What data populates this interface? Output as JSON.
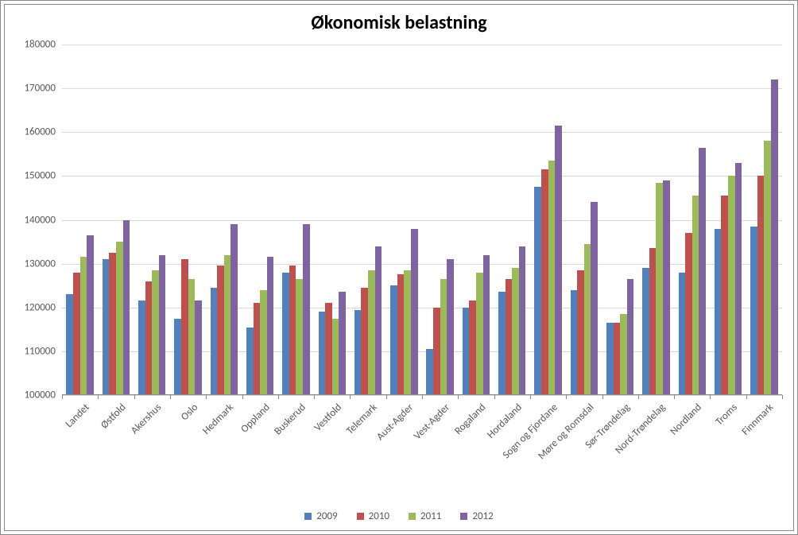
{
  "chart": {
    "type": "bar",
    "title": "Økonomisk belastning",
    "title_fontsize": 24,
    "title_fontweight": "bold",
    "background_color": "#ffffff",
    "border_color": "#888888",
    "grid_color": "#d9d9d9",
    "axis_label_color": "#595959",
    "axis_label_fontsize": 13,
    "tick_mark_color": "#888888",
    "ylim": [
      100000,
      180000
    ],
    "yticks": [
      100000,
      110000,
      120000,
      130000,
      140000,
      150000,
      160000,
      170000,
      180000
    ],
    "categories": [
      "Landet",
      "Østfold",
      "Akershus",
      "Oslo",
      "Hedmark",
      "Oppland",
      "Buskerud",
      "Vestfold",
      "Telemark",
      "Aust-Agder",
      "Vest-Agder",
      "Rogaland",
      "Hordaland",
      "Sogn og Fjordane",
      "Møre og Romsdal",
      "Sør-Trøndelag",
      "Nord-Trøndelag",
      "Nordland",
      "Troms",
      "Finnmark"
    ],
    "series": [
      {
        "name": "2009",
        "color": "#4f81bd",
        "values": [
          123000,
          131000,
          121500,
          117500,
          124500,
          115500,
          128000,
          119000,
          119500,
          125000,
          110500,
          120000,
          123500,
          147500,
          124000,
          116500,
          129000,
          128000,
          138000,
          138500
        ]
      },
      {
        "name": "2010",
        "color": "#c0504d",
        "values": [
          128000,
          132500,
          126000,
          131000,
          129500,
          121000,
          129500,
          121000,
          124500,
          127500,
          120000,
          121500,
          126500,
          151500,
          128500,
          116500,
          133500,
          137000,
          145500,
          150000
        ]
      },
      {
        "name": "2011",
        "color": "#9bbb59",
        "values": [
          131500,
          135000,
          128500,
          126500,
          132000,
          124000,
          126500,
          117500,
          128500,
          128500,
          126500,
          128000,
          129000,
          153500,
          134500,
          118500,
          148500,
          145500,
          150000,
          158000
        ]
      },
      {
        "name": "2012",
        "color": "#8064a2",
        "values": [
          136500,
          140000,
          132000,
          121500,
          139000,
          131500,
          139000,
          123500,
          134000,
          138000,
          131000,
          132000,
          134000,
          161500,
          144000,
          126500,
          149000,
          156500,
          153000,
          172000
        ]
      }
    ],
    "legend_position": "bottom",
    "x_label_rotation": -45,
    "bar_group_width_ratio": 0.76,
    "bar_width_ratio": 0.24
  }
}
